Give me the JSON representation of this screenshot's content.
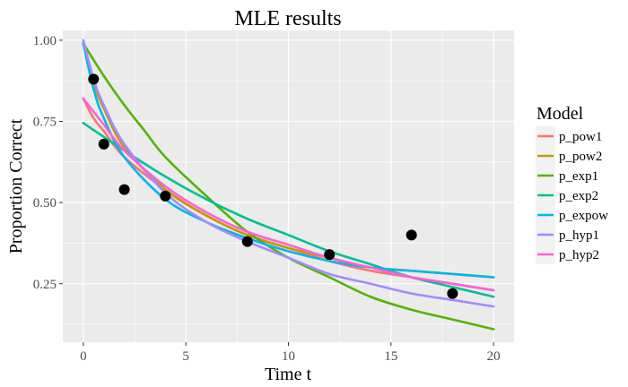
{
  "chart_data": {
    "type": "line",
    "title": "MLE results",
    "xlabel": "Time t",
    "ylabel": "Proportion Correct",
    "xlim": [
      -1,
      21
    ],
    "ylim": [
      0.07,
      1.03
    ],
    "x_ticks": [
      0,
      5,
      10,
      15,
      20
    ],
    "x_tick_labels": [
      "0",
      "5",
      "10",
      "15",
      "20"
    ],
    "y_ticks": [
      0.25,
      0.5,
      0.75,
      1.0
    ],
    "y_tick_labels": [
      "0.25",
      "0.50",
      "0.75",
      "1.00"
    ],
    "grid": true,
    "panel_background": "#ebebeb",
    "legend": {
      "title": "Model",
      "placement": "right",
      "entries": [
        "p_pow1",
        "p_pow2",
        "p_exp1",
        "p_exp2",
        "p_expow",
        "p_hyp1",
        "p_hyp2"
      ]
    },
    "observed_points": {
      "color": "#000000",
      "points": [
        {
          "x": 0.5,
          "y": 0.88
        },
        {
          "x": 1,
          "y": 0.68
        },
        {
          "x": 2,
          "y": 0.54
        },
        {
          "x": 4,
          "y": 0.52
        },
        {
          "x": 8,
          "y": 0.38
        },
        {
          "x": 12,
          "y": 0.34
        },
        {
          "x": 16,
          "y": 0.4
        },
        {
          "x": 18,
          "y": 0.22
        }
      ]
    },
    "series": [
      {
        "name": "p_pow1",
        "color": "#F8766D",
        "x": [
          0,
          0.5,
          1,
          2,
          4,
          6,
          8,
          10,
          12,
          14,
          16,
          18,
          20
        ],
        "y": [
          0.82,
          0.76,
          0.72,
          0.64,
          0.54,
          0.46,
          0.4,
          0.36,
          0.32,
          0.29,
          0.27,
          0.25,
          0.23
        ]
      },
      {
        "name": "p_pow2",
        "color": "#C49A00",
        "x": [
          0,
          0.5,
          1,
          2,
          4,
          6,
          8,
          10,
          12,
          14,
          16,
          18,
          20
        ],
        "y": [
          0.99,
          0.87,
          0.79,
          0.67,
          0.54,
          0.46,
          0.4,
          0.36,
          0.33,
          0.3,
          0.29,
          0.28,
          0.27
        ]
      },
      {
        "name": "p_exp1",
        "color": "#53B400",
        "x": [
          0,
          1,
          2,
          3,
          4,
          6,
          8,
          10,
          12,
          14,
          16,
          18,
          20
        ],
        "y": [
          0.99,
          0.89,
          0.8,
          0.72,
          0.64,
          0.52,
          0.41,
          0.33,
          0.27,
          0.21,
          0.17,
          0.14,
          0.11
        ]
      },
      {
        "name": "p_exp2",
        "color": "#00C094",
        "x": [
          0,
          2,
          4,
          6,
          8,
          10,
          12,
          14,
          16,
          18,
          20
        ],
        "y": [
          0.745,
          0.66,
          0.58,
          0.51,
          0.45,
          0.4,
          0.35,
          0.31,
          0.27,
          0.24,
          0.21
        ]
      },
      {
        "name": "p_expow",
        "color": "#00B6EB",
        "x": [
          0,
          0.5,
          1,
          2,
          4,
          6,
          8,
          10,
          12,
          14,
          16,
          18,
          20
        ],
        "y": [
          0.99,
          0.85,
          0.76,
          0.64,
          0.51,
          0.44,
          0.39,
          0.35,
          0.32,
          0.3,
          0.29,
          0.28,
          0.27
        ]
      },
      {
        "name": "p_hyp1",
        "color": "#A58AFF",
        "x": [
          0,
          0.5,
          1,
          2,
          4,
          6,
          8,
          10,
          12,
          14,
          16,
          18,
          20
        ],
        "y": [
          1.0,
          0.88,
          0.8,
          0.68,
          0.53,
          0.44,
          0.38,
          0.33,
          0.28,
          0.25,
          0.22,
          0.2,
          0.18
        ]
      },
      {
        "name": "p_hyp2",
        "color": "#FB61D7",
        "x": [
          0,
          0.5,
          1,
          2,
          4,
          6,
          8,
          10,
          12,
          14,
          16,
          18,
          20
        ],
        "y": [
          0.82,
          0.78,
          0.74,
          0.66,
          0.55,
          0.47,
          0.41,
          0.37,
          0.33,
          0.3,
          0.27,
          0.25,
          0.23
        ]
      }
    ]
  }
}
